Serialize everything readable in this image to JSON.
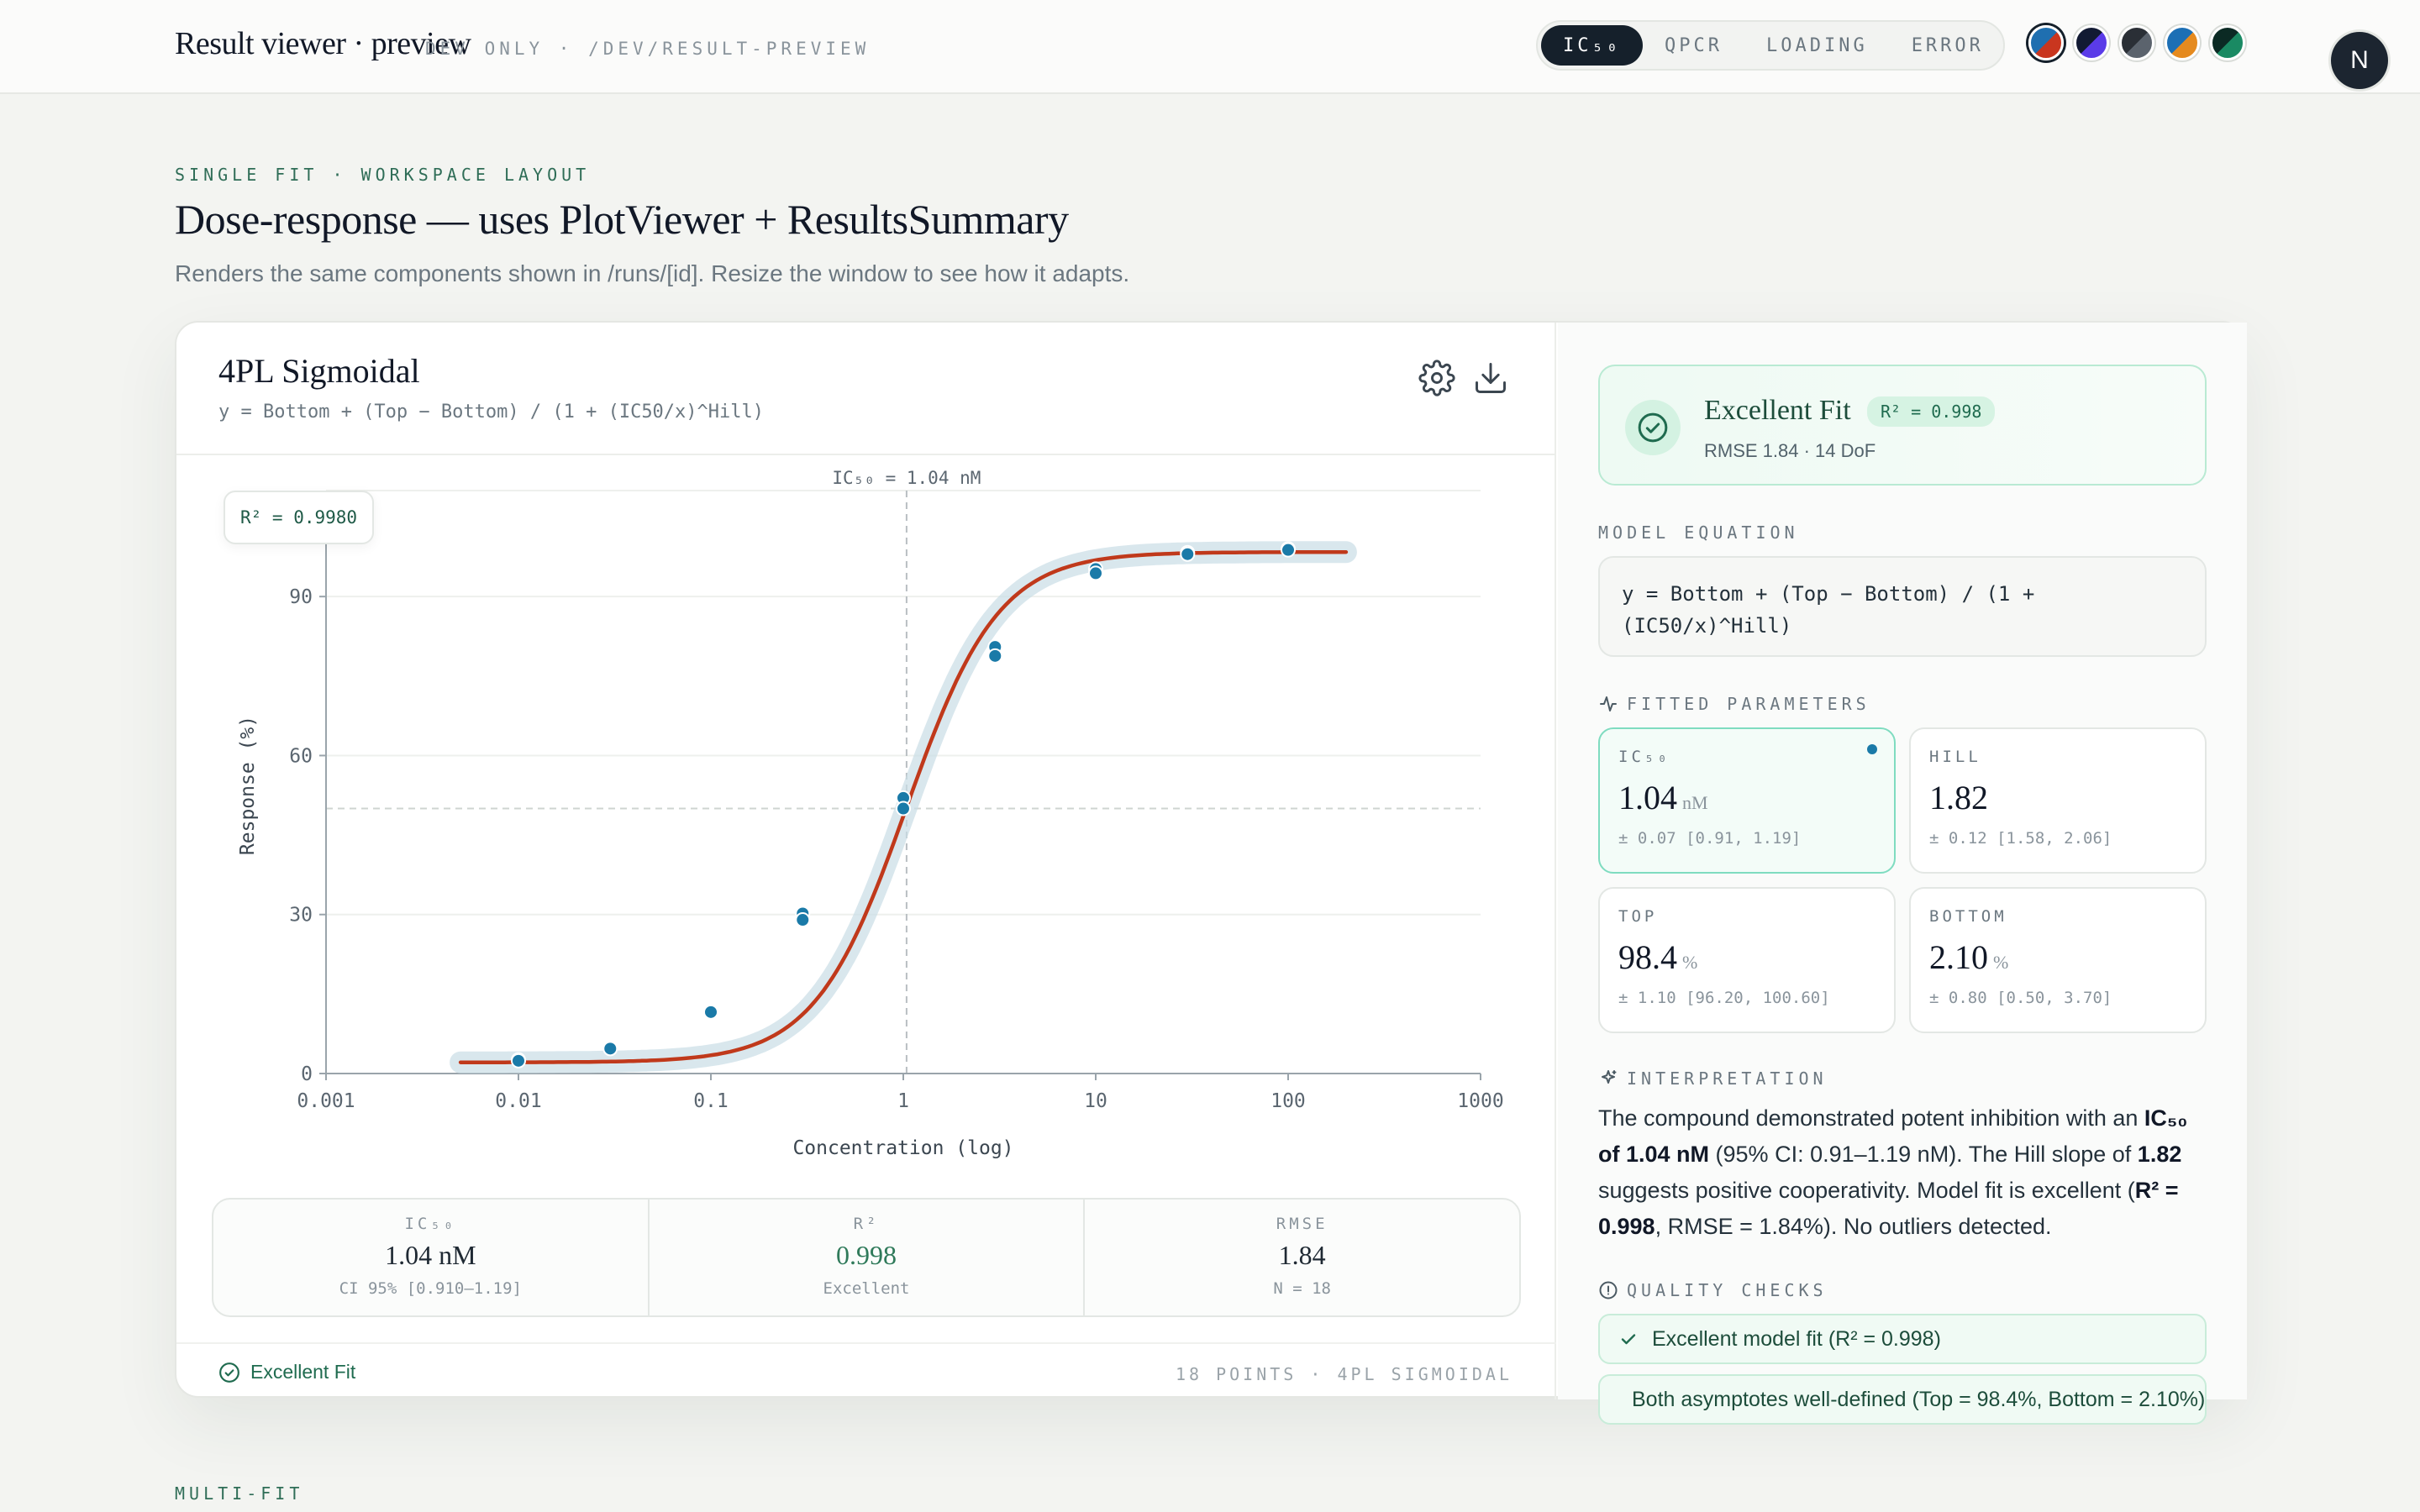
{
  "header": {
    "title": "Result viewer · preview",
    "meta": "DEV ONLY · /DEV/RESULT-PREVIEW",
    "tabs": [
      {
        "label": "IC₅₀",
        "active": true
      },
      {
        "label": "QPCR",
        "active": false
      },
      {
        "label": "LOADING",
        "active": false
      },
      {
        "label": "ERROR",
        "active": false
      }
    ],
    "themes": [
      {
        "name": "theme-swatch-blue-red",
        "a": "#1f6fb0",
        "b": "#c9361f",
        "selected": true
      },
      {
        "name": "theme-swatch-navy-violet",
        "a": "#121a33",
        "b": "#5a3be8",
        "selected": false
      },
      {
        "name": "theme-swatch-slate",
        "a": "#2a2f36",
        "b": "#5b636d",
        "selected": false
      },
      {
        "name": "theme-swatch-blue-orange",
        "a": "#1c6fb5",
        "b": "#e58a1f",
        "selected": false
      },
      {
        "name": "theme-swatch-green",
        "a": "#0b2a24",
        "b": "#1a8a63",
        "selected": false
      }
    ],
    "avatar_initial": "N"
  },
  "hero": {
    "kicker": "SINGLE FIT · WORKSPACE LAYOUT",
    "title": "Dose-response — uses PlotViewer + ResultsSummary",
    "subtitle": "Renders the same components shown in /runs/[id]. Resize the window to see how it adapts."
  },
  "plot_panel": {
    "model_name": "4PL Sigmoidal",
    "equation": "y = Bottom + (Top − Bottom) / (1 + (IC50/x)^Hill)",
    "r2_badge": "R² = 0.9980",
    "stats": [
      {
        "label": "IC₅₀",
        "value": "1.04 nM",
        "note": "CI 95% [0.910–1.19]"
      },
      {
        "label": "R²",
        "value": "0.998",
        "note": "Excellent"
      },
      {
        "label": "RMSE",
        "value": "1.84",
        "note": "N = 18"
      }
    ],
    "footer_status": "Excellent Fit",
    "footer_meta": "18 POINTS · 4PL SIGMOIDAL"
  },
  "chart_data": {
    "type": "scatter",
    "xlabel": "Concentration (log)",
    "ylabel": "Response (%)",
    "x_scale": "log",
    "xlim": [
      0.001,
      1000
    ],
    "ylim": [
      0,
      110
    ],
    "x_ticks": [
      0.001,
      0.01,
      0.1,
      1,
      10,
      100,
      1000
    ],
    "x_tick_labels": [
      "0.001",
      "0.01",
      "0.1",
      "1",
      "10",
      "100",
      "1000"
    ],
    "y_ticks": [
      0,
      30,
      60,
      90
    ],
    "y_tick_labels": [
      "0",
      "30",
      "60",
      "90"
    ],
    "annotation_ic50": "IC₅₀ = 1.04 nM",
    "ic50_x": 1.04,
    "half_max_y": 50,
    "points": [
      {
        "x": 0.01,
        "y": 2.6
      },
      {
        "x": 0.01,
        "y": 2.4
      },
      {
        "x": 0.03,
        "y": 4.9
      },
      {
        "x": 0.03,
        "y": 4.7
      },
      {
        "x": 0.1,
        "y": 11.8
      },
      {
        "x": 0.1,
        "y": 11.6
      },
      {
        "x": 0.3,
        "y": 30.2
      },
      {
        "x": 0.3,
        "y": 29.0
      },
      {
        "x": 1,
        "y": 52.0
      },
      {
        "x": 1,
        "y": 50.0
      },
      {
        "x": 3,
        "y": 80.5
      },
      {
        "x": 3,
        "y": 78.8
      },
      {
        "x": 10,
        "y": 95.2
      },
      {
        "x": 10,
        "y": 94.4
      },
      {
        "x": 30,
        "y": 98.3
      },
      {
        "x": 30,
        "y": 98.0
      },
      {
        "x": 100,
        "y": 99.0
      },
      {
        "x": 100,
        "y": 98.8
      }
    ],
    "fit": {
      "top": 98.4,
      "bottom": 2.1,
      "ic50": 1.04,
      "hill": 1.82,
      "x_range": [
        0.005,
        200
      ]
    },
    "colors": {
      "points": "#1a7aa8",
      "fit": "#c0391b",
      "band": "#c9dde6"
    }
  },
  "summary": {
    "fit_title": "Excellent Fit",
    "fit_pill": "R² = 0.998",
    "fit_sub": "RMSE 1.84 · 14 DoF",
    "equation_label": "MODEL EQUATION",
    "equation": "y = Bottom + (Top − Bottom) / (1 + (IC50/x)^Hill)",
    "params_label": "FITTED PARAMETERS",
    "params": [
      {
        "label": "IC₅₀",
        "value": "1.04",
        "unit": "nM",
        "ci": "± 0.07 [0.91, 1.19]",
        "highlight": true
      },
      {
        "label": "HILL",
        "value": "1.82",
        "unit": "",
        "ci": "± 0.12 [1.58, 2.06]",
        "highlight": false
      },
      {
        "label": "TOP",
        "value": "98.4",
        "unit": "%",
        "ci": "± 1.10 [96.20, 100.60]",
        "highlight": false
      },
      {
        "label": "BOTTOM",
        "value": "2.10",
        "unit": "%",
        "ci": "± 0.80 [0.50, 3.70]",
        "highlight": false
      }
    ],
    "interpretation_label": "INTERPRETATION",
    "interpretation": {
      "t1": "The compound demonstrated potent inhibition with an ",
      "b1": "IC₅₀ of 1.04 nM",
      "t2": " (95% CI: 0.91–1.19 nM). The Hill slope of ",
      "b2": "1.82",
      "t3": " suggests positive cooperativity. Model fit is excellent (",
      "b3": "R² = 0.998",
      "t4": ", RMSE = 1.84%). No outliers detected."
    },
    "checks_label": "QUALITY CHECKS",
    "checks": [
      "Excellent model fit (R² = 0.998)",
      "Both asymptotes well-defined (Top = 98.4%, Bottom = 2.10%)"
    ]
  },
  "multi_label": "MULTI-FIT"
}
